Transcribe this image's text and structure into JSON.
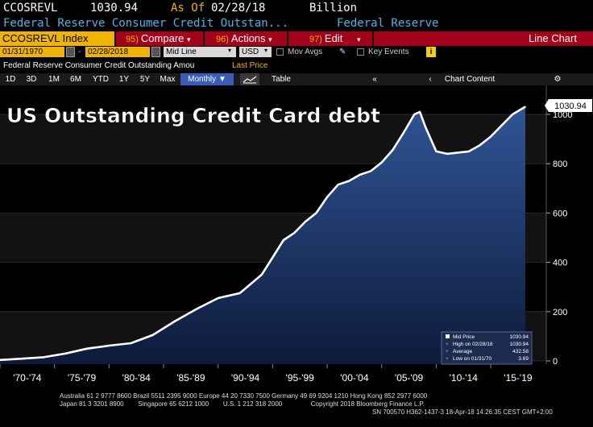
{
  "header": {
    "ticker": "CCOSREVL",
    "value": "1030.94",
    "as_of_label": "As Of",
    "as_of_date": "02/28/18",
    "unit": "Billion",
    "description": "Federal Reserve Consumer Credit Outstan...",
    "source": "Federal Reserve"
  },
  "toolbar": {
    "ticker_box": "CCOSREVL Index",
    "compare_num": "95)",
    "compare_label": "Compare",
    "actions_num": "96)",
    "actions_label": "Actions",
    "edit_num": "97)",
    "edit_label": "Edit",
    "chart_type": "Line Chart"
  },
  "date_row": {
    "start_date": "01/31/1970",
    "sep": "-",
    "end_date": "02/28/2018",
    "line_type": "Mid Line",
    "currency": "USD",
    "mov_avgs": "Mov Avgs",
    "key_events": "Key Events",
    "info_badge": "i"
  },
  "security_row": {
    "description": "Federal Reserve Consumer Credit Outstanding Amou",
    "last_price": "Last Price"
  },
  "period_toolbar": {
    "periods": [
      "1D",
      "3D",
      "1M",
      "6M",
      "YTD",
      "1Y",
      "5Y",
      "Max"
    ],
    "frequency": "Monthly",
    "table_label": "Table",
    "chart_content": "Chart Content"
  },
  "footer": {
    "line1": "Australia 61 2 9777 8600 Brazil 5511 2395 9000 Europe 44 20 7330 7500 Germany 49 69 9204 1210 Hong Kong 852 2977 6000",
    "line2": "Japan 81 3 3201 8900        Singapore 65 6212 1000        U.S. 1 212 318 2000                Copyright 2018 Bloomberg Finance L.P.",
    "line3": "SN 700570 H362-1437-3 18-Apr-18 14:26:35 CEST GMT+2:00"
  },
  "colors": {
    "line": "#ffffff",
    "area_top": "#2f5596",
    "area_bottom": "#0d1a3a",
    "bloomberg_orange": "#f0b400",
    "bloomberg_red": "#a3001a"
  },
  "chart_data": {
    "type": "area",
    "title": "US Outstanding Credit Card debt",
    "x_tick_labels": [
      "'70-'74",
      "'75-'79",
      "'80-'84",
      "'85-'89",
      "'90-'94",
      "'95-'99",
      "'00-'04",
      "'05-'09",
      "'10-'14",
      "'15-'19"
    ],
    "x_range": [
      1970.0,
      2019.5
    ],
    "ylim": [
      0,
      1100
    ],
    "y_ticks": [
      0,
      200,
      400,
      600,
      800,
      1000
    ],
    "last_value_label": "1030.94",
    "grid": "horizontal",
    "series": [
      {
        "x": [
          1970.0,
          1972.0,
          1974.0,
          1976.0,
          1978.0,
          1980.0,
          1982.0,
          1984.0,
          1986.0,
          1988.0,
          1990.0,
          1992.0,
          1994.0,
          1995.0,
          1996.0,
          1997.0,
          1998.0,
          1999.0,
          2000.0,
          2001.0,
          2002.0,
          2003.0,
          2004.0,
          2005.0,
          2006.0,
          2007.0,
          2008.0,
          2008.5,
          2009.0,
          2010.0,
          2011.0,
          2012.0,
          2013.0,
          2014.0,
          2015.0,
          2016.0,
          2017.0,
          2018.17
        ],
        "y": [
          4,
          9,
          15,
          30,
          50,
          62,
          72,
          105,
          160,
          210,
          255,
          275,
          350,
          420,
          490,
          520,
          565,
          600,
          665,
          715,
          730,
          755,
          770,
          805,
          855,
          925,
          1000,
          1010,
          950,
          850,
          840,
          845,
          850,
          875,
          910,
          955,
          1000,
          1030.94
        ]
      }
    ],
    "legend": {
      "placement": "bottom-right",
      "entries": [
        {
          "label": "Mid Price",
          "value": "1030.94"
        },
        {
          "label": "High on 02/28/18",
          "value": "1030.94"
        },
        {
          "label": "Average",
          "value": "432.58"
        },
        {
          "label": "Low on 01/31/70",
          "value": "3.69"
        }
      ]
    }
  }
}
